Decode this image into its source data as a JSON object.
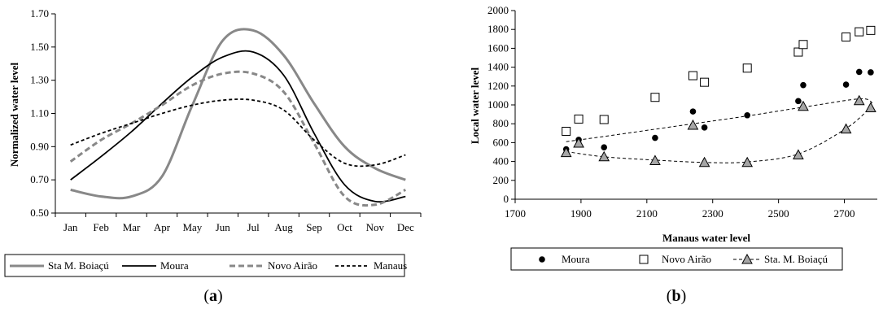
{
  "chart_data": [
    {
      "panel": "(a)",
      "panel_letter": "a",
      "type": "line",
      "xlabel": "",
      "ylabel": "Normalized water level",
      "ylim": [
        0.5,
        1.7
      ],
      "yticks": [
        "0.50",
        "0.70",
        "0.90",
        "1.10",
        "1.30",
        "1.50",
        "1.70"
      ],
      "categories": [
        "Jan",
        "Feb",
        "Mar",
        "Apr",
        "May",
        "Jun",
        "Jul",
        "Aug",
        "Sep",
        "Oct",
        "Nov",
        "Dec"
      ],
      "grid": false,
      "legend": "bottom",
      "series": [
        {
          "name": "Sta M. Boiaçú",
          "color": "#888888",
          "style": "solid-thick",
          "values": [
            0.64,
            0.6,
            0.6,
            0.72,
            1.15,
            1.54,
            1.6,
            1.45,
            1.16,
            0.9,
            0.77,
            0.7
          ]
        },
        {
          "name": "Moura",
          "color": "#000000",
          "style": "solid",
          "values": [
            0.7,
            0.84,
            0.99,
            1.16,
            1.32,
            1.44,
            1.47,
            1.33,
            0.98,
            0.67,
            0.57,
            0.6
          ]
        },
        {
          "name": "Novo Airão",
          "color": "#888888",
          "style": "dashed-thick",
          "values": [
            0.81,
            0.94,
            1.04,
            1.15,
            1.27,
            1.34,
            1.34,
            1.23,
            0.92,
            0.6,
            0.55,
            0.64
          ]
        },
        {
          "name": "Manaus",
          "color": "#000000",
          "style": "dashed",
          "values": [
            0.91,
            0.98,
            1.04,
            1.1,
            1.15,
            1.18,
            1.18,
            1.12,
            0.94,
            0.8,
            0.79,
            0.85
          ]
        }
      ]
    },
    {
      "panel": "(b)",
      "panel_letter": "b",
      "type": "scatter",
      "xlabel": "Manaus water level",
      "ylabel": "Local water level",
      "xlim": [
        1700,
        2800
      ],
      "ylim": [
        0,
        2000
      ],
      "xticks": [
        "1700",
        "1900",
        "2100",
        "2300",
        "2500",
        "2700"
      ],
      "yticks": [
        "0",
        "200",
        "400",
        "600",
        "800",
        "1000",
        "1200",
        "1400",
        "1600",
        "1800",
        "2000"
      ],
      "grid": false,
      "legend": "bottom",
      "series": [
        {
          "name": "Moura",
          "marker": "dot",
          "points": [
            [
              1855,
              530
            ],
            [
              1893,
              630
            ],
            [
              1970,
              550
            ],
            [
              2125,
              650
            ],
            [
              2240,
              930
            ],
            [
              2275,
              760
            ],
            [
              2405,
              890
            ],
            [
              2560,
              1040
            ],
            [
              2575,
              1210
            ],
            [
              2705,
              1215
            ],
            [
              2745,
              1350
            ],
            [
              2780,
              1345
            ]
          ]
        },
        {
          "name": "Novo Airão",
          "marker": "square",
          "points": [
            [
              1855,
              720
            ],
            [
              1893,
              850
            ],
            [
              1970,
              845
            ],
            [
              2125,
              1080
            ],
            [
              2240,
              1310
            ],
            [
              2275,
              1240
            ],
            [
              2405,
              1390
            ],
            [
              2560,
              1560
            ],
            [
              2575,
              1640
            ],
            [
              2705,
              1720
            ],
            [
              2745,
              1775
            ],
            [
              2780,
              1790
            ]
          ]
        },
        {
          "name": "Sta. M. Boiaçú",
          "marker": "triangle",
          "points": [
            [
              1855,
              495
            ],
            [
              1893,
              595
            ],
            [
              1970,
              450
            ],
            [
              2125,
              410
            ],
            [
              2240,
              785
            ],
            [
              2275,
              390
            ],
            [
              2405,
              390
            ],
            [
              2560,
              470
            ],
            [
              2575,
              985
            ],
            [
              2705,
              745
            ],
            [
              2745,
              1045
            ],
            [
              2780,
              970
            ]
          ]
        }
      ],
      "trendlines": [
        {
          "style": "dashed",
          "points": [
            [
              1855,
              610
            ],
            [
              2000,
              680
            ],
            [
              2200,
              780
            ],
            [
              2400,
              880
            ],
            [
              2600,
              990
            ],
            [
              2750,
              1065
            ],
            [
              2785,
              1020
            ]
          ]
        },
        {
          "style": "dashed",
          "points": [
            [
              1855,
              505
            ],
            [
              1970,
              450
            ],
            [
              2125,
              415
            ],
            [
              2275,
              390
            ],
            [
              2405,
              395
            ],
            [
              2560,
              480
            ],
            [
              2705,
              750
            ],
            [
              2780,
              975
            ]
          ]
        }
      ]
    }
  ]
}
